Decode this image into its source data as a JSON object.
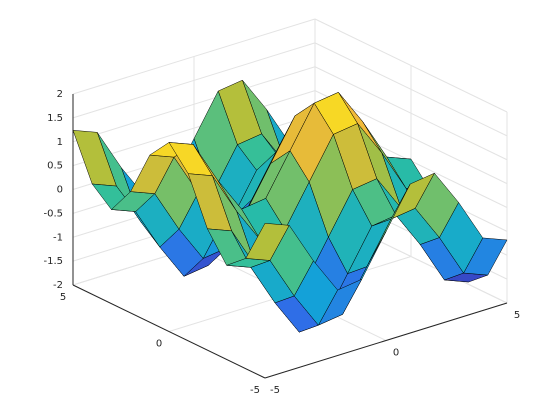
{
  "chart_data": {
    "type": "surface",
    "x": [
      -5,
      -4,
      -3,
      -2,
      -1,
      0,
      1,
      2,
      3,
      4,
      5
    ],
    "y": [
      -5,
      -4,
      -3,
      -2,
      -1,
      0,
      1,
      2,
      3,
      4,
      5
    ],
    "z": [
      [
        1.24,
        1.04,
        0.14,
        -0.63,
        -0.56,
        0.28,
        1.12,
        1.19,
        0.42,
        -0.48,
        -0.68
      ],
      [
        0.31,
        0.11,
        -0.79,
        -1.56,
        -1.49,
        -0.65,
        0.19,
        0.26,
        -0.51,
        -1.41,
        -1.61
      ],
      [
        -0.03,
        -0.23,
        -1.13,
        -1.9,
        -1.83,
        -0.99,
        -0.15,
        -0.08,
        -0.85,
        -1.75,
        -1.95
      ],
      [
        0.54,
        0.34,
        -0.56,
        -1.33,
        -1.26,
        -0.42,
        0.42,
        0.49,
        -0.28,
        -1.18,
        -1.38
      ],
      [
        1.5,
        1.3,
        0.4,
        -0.37,
        -0.3,
        0.54,
        1.38,
        1.45,
        0.68,
        -0.22,
        -0.42
      ],
      [
        1.96,
        1.76,
        0.86,
        0.09,
        0.16,
        1,
        1.84,
        1.91,
        1.14,
        0.24,
        0.04
      ],
      [
        1.5,
        1.3,
        0.4,
        -0.37,
        -0.3,
        0.54,
        1.38,
        1.45,
        0.68,
        -0.22,
        -0.42
      ],
      [
        0.54,
        0.34,
        -0.56,
        -1.33,
        -1.26,
        -0.42,
        0.42,
        0.49,
        -0.28,
        -1.18,
        -1.38
      ],
      [
        -0.03,
        -0.23,
        -1.13,
        -1.9,
        -1.83,
        -0.99,
        -0.15,
        -0.08,
        -0.85,
        -1.75,
        -1.95
      ],
      [
        0.31,
        0.11,
        -0.79,
        -1.56,
        -1.49,
        -0.65,
        0.19,
        0.26,
        -0.51,
        -1.41,
        -1.61
      ],
      [
        1.24,
        1.04,
        0.14,
        -0.63,
        -0.56,
        0.28,
        1.12,
        1.19,
        0.42,
        -0.48,
        -0.68
      ]
    ],
    "xlim": [
      -5,
      5
    ],
    "xticks": [
      -5,
      0,
      5
    ],
    "ylim": [
      -5,
      5
    ],
    "yticks": [
      -5,
      0,
      5
    ],
    "zlim": [
      -2,
      2
    ],
    "zticks": [
      -2,
      -1.5,
      -1,
      -0.5,
      0,
      0.5,
      1,
      1.5,
      2
    ],
    "colormap": [
      "#3e26a8",
      "#2f6fe8",
      "#12a4d7",
      "#2bbfa0",
      "#b2bf3b",
      "#f6ba39",
      "#f9fb0e"
    ],
    "grid": true
  }
}
